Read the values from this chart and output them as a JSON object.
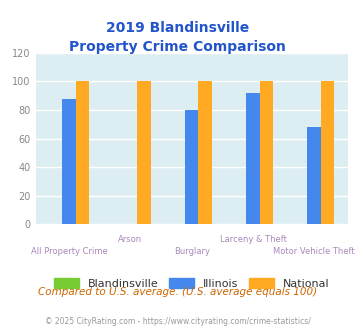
{
  "title_line1": "2019 Blandinsville",
  "title_line2": "Property Crime Comparison",
  "categories": [
    "All Property Crime",
    "Arson",
    "Burglary",
    "Larceny & Theft",
    "Motor Vehicle Theft"
  ],
  "blandinsville": [
    0,
    0,
    0,
    0,
    0
  ],
  "illinois": [
    88,
    0,
    80,
    92,
    68
  ],
  "national": [
    100,
    100,
    100,
    100,
    100
  ],
  "bar_colors": {
    "blandinsville": "#77cc33",
    "illinois": "#4488ee",
    "national": "#ffaa22"
  },
  "ylim": [
    0,
    120
  ],
  "yticks": [
    0,
    20,
    40,
    60,
    80,
    100,
    120
  ],
  "title_color": "#2255cc",
  "xlabel_color": "#aa88bb",
  "ylabel_color": "#888888",
  "background_color": "#ddeef2",
  "grid_color": "#ffffff",
  "footer_text": "Compared to U.S. average. (U.S. average equals 100)",
  "copyright_text": "© 2025 CityRating.com - https://www.cityrating.com/crime-statistics/",
  "footer_color": "#cc6600",
  "copyright_color": "#999999",
  "legend_labels": [
    "Blandinsville",
    "Illinois",
    "National"
  ],
  "bar_width": 0.22
}
